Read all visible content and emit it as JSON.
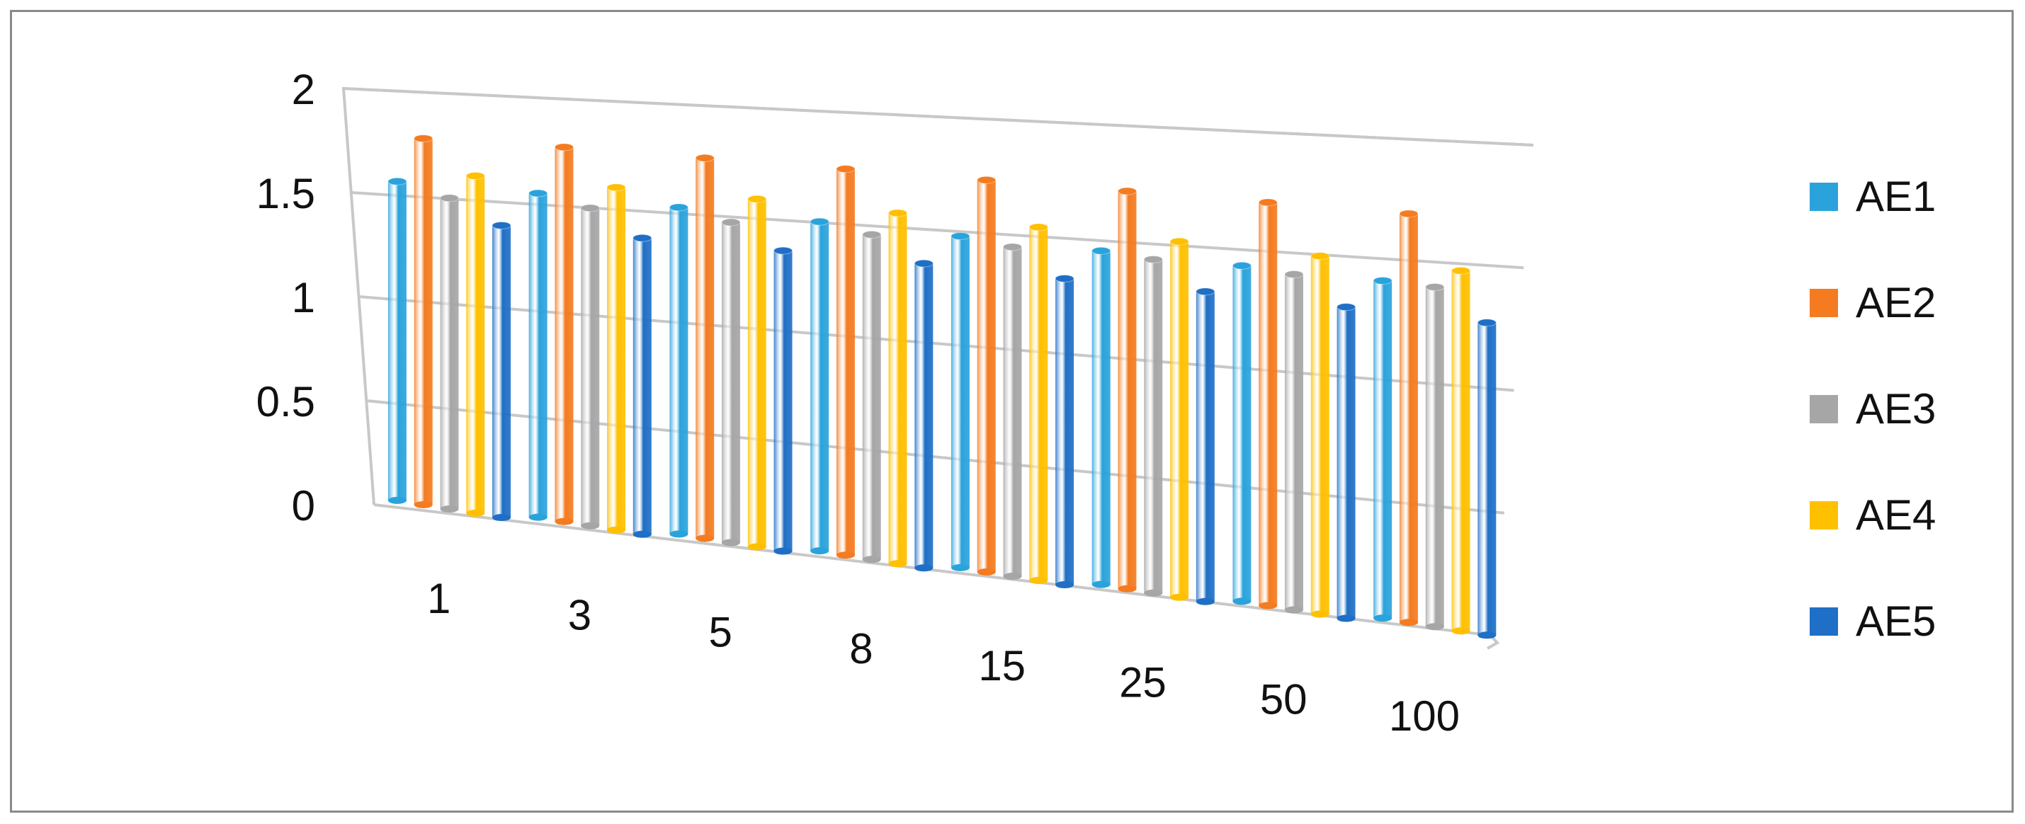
{
  "chart_data": {
    "type": "bar",
    "categories": [
      "1",
      "3",
      "5",
      "8",
      "15",
      "25",
      "50",
      "100"
    ],
    "series": [
      {
        "name": "AE1",
        "color": "#2aa3dc",
        "values": [
          1.53,
          1.52,
          1.5,
          1.48,
          1.46,
          1.44,
          1.42,
          1.4
        ]
      },
      {
        "name": "AE2",
        "color": "#f47b20",
        "values": [
          1.75,
          1.75,
          1.74,
          1.73,
          1.72,
          1.71,
          1.7,
          1.69
        ]
      },
      {
        "name": "AE3",
        "color": "#a6a6a6",
        "values": [
          1.48,
          1.48,
          1.46,
          1.45,
          1.44,
          1.43,
          1.41,
          1.4
        ]
      },
      {
        "name": "AE4",
        "color": "#ffc000",
        "values": [
          1.6,
          1.59,
          1.58,
          1.56,
          1.54,
          1.52,
          1.5,
          1.48
        ]
      },
      {
        "name": "AE5",
        "color": "#1f6fc6",
        "values": [
          1.38,
          1.37,
          1.36,
          1.35,
          1.33,
          1.32,
          1.3,
          1.28
        ]
      }
    ],
    "y_ticks": [
      "0",
      "0.5",
      "1",
      "1.5",
      "2"
    ],
    "ylim": [
      0,
      2
    ],
    "grid": true,
    "legend": "right"
  }
}
